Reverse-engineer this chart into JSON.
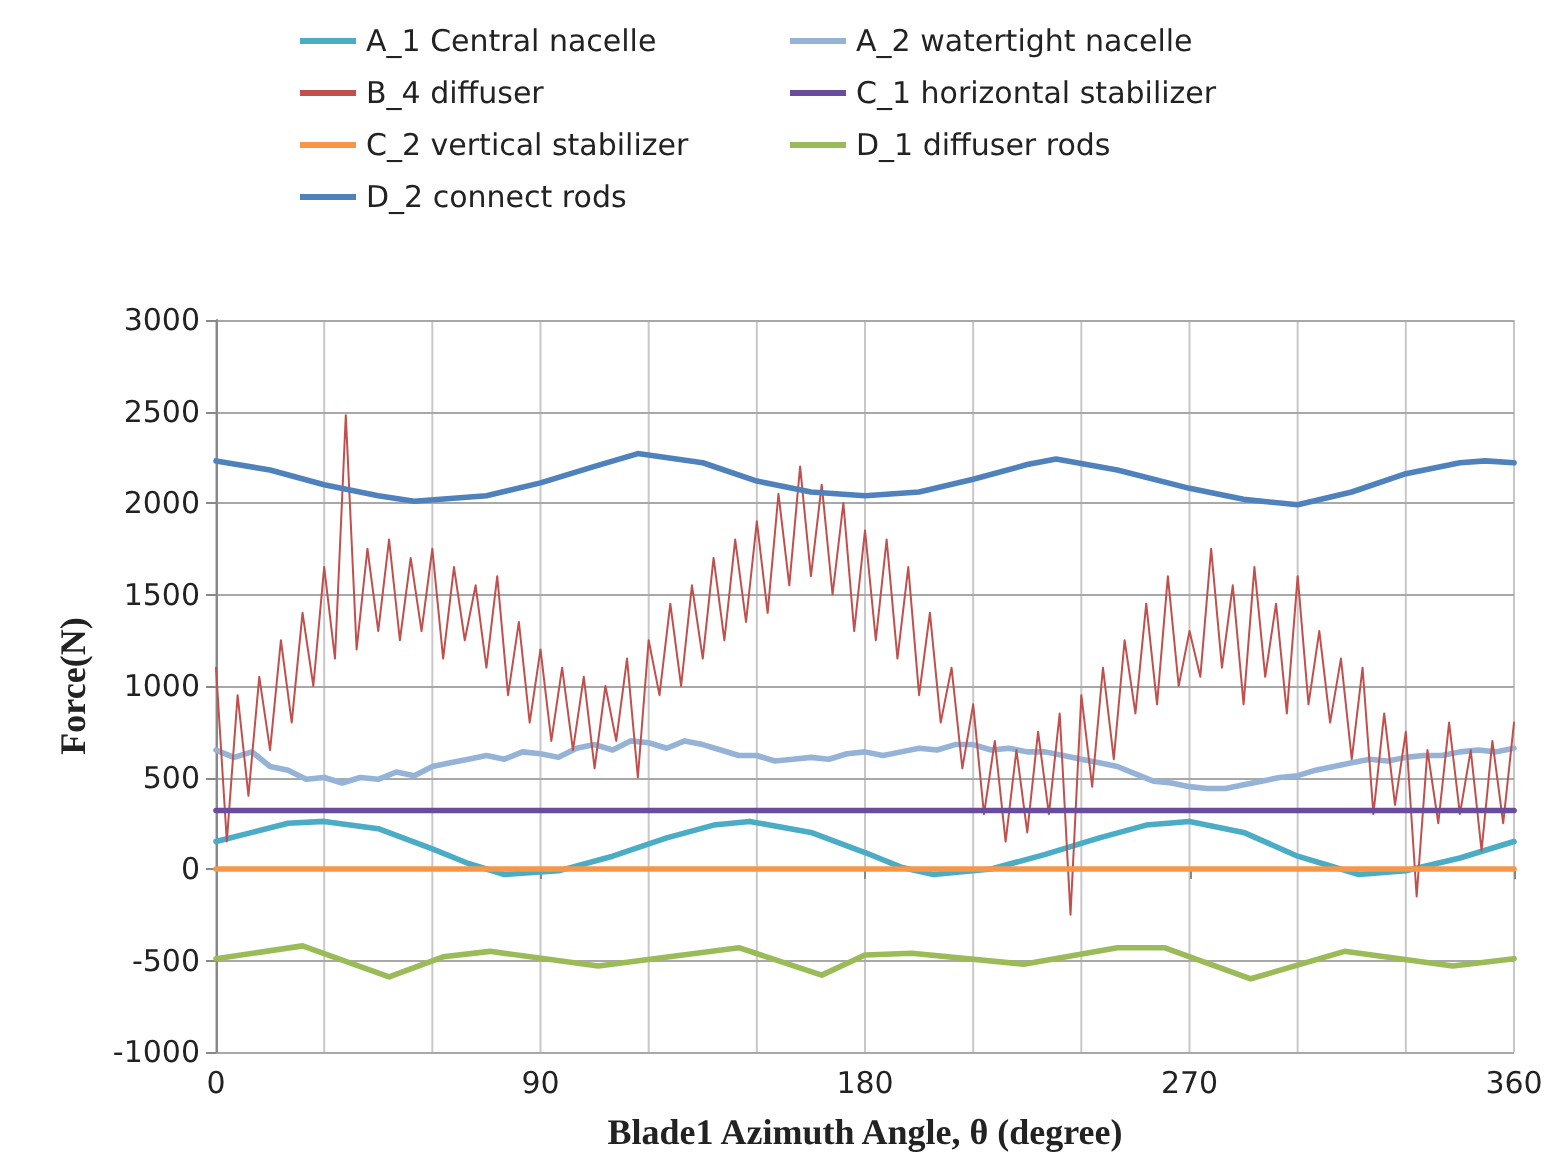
{
  "chart_data": {
    "type": "line",
    "xlabel": "Blade1 Azimuth Angle, θ (degree)",
    "ylabel": "Force(N)",
    "xlim": [
      0,
      360
    ],
    "ylim": [
      -1000,
      3000
    ],
    "xticks": [
      0,
      {
        "value": 30,
        "label": null
      },
      {
        "value": 60,
        "label": null
      },
      90,
      {
        "value": 120,
        "label": null
      },
      {
        "value": 150,
        "label": null
      },
      180,
      {
        "value": 210,
        "label": null
      },
      {
        "value": 240,
        "label": null
      },
      270,
      {
        "value": 300,
        "label": null
      },
      {
        "value": 330,
        "label": null
      },
      360
    ],
    "yticks": [
      -1000,
      -500,
      0,
      500,
      1000,
      1500,
      2000,
      2500,
      3000
    ],
    "grid": true,
    "legend": "top",
    "marker": "none",
    "line_style": "solid",
    "series": [
      {
        "name": "A_1 Central nacelle",
        "color": "#4bacc6",
        "x": [
          0,
          10,
          20,
          30,
          45,
          60,
          70,
          80,
          95,
          110,
          125,
          138,
          148,
          165,
          180,
          190,
          199,
          215,
          230,
          245,
          258,
          270,
          285,
          300,
          317,
          330,
          345,
          360
        ],
        "values": [
          150,
          200,
          250,
          260,
          220,
          110,
          30,
          -30,
          -10,
          70,
          170,
          240,
          260,
          200,
          90,
          10,
          -30,
          0,
          80,
          170,
          240,
          260,
          200,
          70,
          -30,
          -10,
          60,
          150
        ]
      },
      {
        "name": "A_2 watertight nacelle",
        "color": "#95b3d7",
        "x": [
          0,
          5,
          10,
          15,
          20,
          25,
          30,
          35,
          40,
          45,
          50,
          55,
          60,
          65,
          70,
          75,
          80,
          85,
          90,
          95,
          100,
          105,
          110,
          115,
          120,
          125,
          130,
          135,
          140,
          145,
          150,
          155,
          160,
          165,
          170,
          175,
          180,
          185,
          190,
          195,
          200,
          205,
          210,
          215,
          220,
          225,
          230,
          235,
          240,
          245,
          250,
          255,
          260,
          265,
          270,
          275,
          280,
          285,
          290,
          295,
          300,
          305,
          310,
          315,
          320,
          325,
          330,
          335,
          340,
          345,
          350,
          355,
          360
        ],
        "values": [
          650,
          610,
          640,
          560,
          540,
          490,
          500,
          470,
          500,
          490,
          530,
          510,
          560,
          580,
          600,
          620,
          600,
          640,
          630,
          610,
          660,
          680,
          650,
          700,
          690,
          660,
          700,
          680,
          650,
          620,
          620,
          590,
          600,
          610,
          600,
          630,
          640,
          620,
          640,
          660,
          650,
          680,
          680,
          650,
          660,
          640,
          640,
          620,
          600,
          580,
          560,
          520,
          480,
          470,
          450,
          440,
          440,
          460,
          480,
          500,
          510,
          540,
          560,
          580,
          600,
          590,
          610,
          620,
          620,
          640,
          650,
          640,
          660
        ]
      },
      {
        "name": "B_4 diffuser",
        "color": "#c0504d",
        "x": [
          0,
          3,
          6,
          9,
          12,
          15,
          18,
          21,
          24,
          27,
          30,
          33,
          36,
          39,
          42,
          45,
          48,
          51,
          54,
          57,
          60,
          63,
          66,
          69,
          72,
          75,
          78,
          81,
          84,
          87,
          90,
          93,
          96,
          99,
          102,
          105,
          108,
          111,
          114,
          117,
          120,
          123,
          126,
          129,
          132,
          135,
          138,
          141,
          144,
          147,
          150,
          153,
          156,
          159,
          162,
          165,
          168,
          171,
          174,
          177,
          180,
          183,
          186,
          189,
          192,
          195,
          198,
          201,
          204,
          207,
          210,
          213,
          216,
          219,
          222,
          225,
          228,
          231,
          234,
          237,
          240,
          243,
          246,
          249,
          252,
          255,
          258,
          261,
          264,
          267,
          270,
          273,
          276,
          279,
          282,
          285,
          288,
          291,
          294,
          297,
          300,
          303,
          306,
          309,
          312,
          315,
          318,
          321,
          324,
          327,
          330,
          333,
          336,
          339,
          342,
          345,
          348,
          351,
          354,
          357,
          360
        ],
        "values": [
          1100,
          150,
          950,
          400,
          1050,
          650,
          1250,
          800,
          1400,
          1000,
          1650,
          1150,
          2480,
          1200,
          1750,
          1300,
          1800,
          1250,
          1700,
          1300,
          1750,
          1150,
          1650,
          1250,
          1550,
          1100,
          1600,
          950,
          1350,
          800,
          1200,
          700,
          1100,
          650,
          1050,
          550,
          1000,
          700,
          1150,
          500,
          1250,
          950,
          1450,
          1000,
          1550,
          1150,
          1700,
          1250,
          1800,
          1350,
          1900,
          1400,
          2050,
          1550,
          2200,
          1600,
          2100,
          1500,
          2000,
          1300,
          1850,
          1250,
          1800,
          1150,
          1650,
          950,
          1400,
          800,
          1100,
          550,
          900,
          300,
          700,
          150,
          650,
          200,
          750,
          300,
          850,
          -250,
          950,
          450,
          1100,
          600,
          1250,
          850,
          1450,
          900,
          1600,
          1000,
          1300,
          1050,
          1750,
          1100,
          1550,
          900,
          1650,
          1050,
          1450,
          850,
          1600,
          900,
          1300,
          800,
          1150,
          600,
          1100,
          300,
          850,
          350,
          750,
          -150,
          650,
          250,
          800,
          300,
          650,
          100,
          700,
          250,
          800
        ]
      },
      {
        "name": "C_1 horizontal stabilizer",
        "color": "#6a4c9c",
        "x": [
          0,
          360
        ],
        "values": [
          320,
          320
        ]
      },
      {
        "name": "C_2 vertical stabilizer",
        "color": "#f79646",
        "x": [
          0,
          360
        ],
        "values": [
          0,
          0
        ]
      },
      {
        "name": "D_1 diffuser rods",
        "color": "#9bbb59",
        "x": [
          0,
          24,
          48,
          63,
          76,
          106,
          145,
          168,
          180,
          193,
          224,
          250,
          263,
          287,
          313,
          343,
          360
        ],
        "values": [
          -490,
          -420,
          -590,
          -480,
          -450,
          -530,
          -430,
          -580,
          -470,
          -460,
          -520,
          -430,
          -430,
          -600,
          -450,
          -530,
          -490
        ]
      },
      {
        "name": "D_2 connect rods",
        "color": "#4f81bd",
        "x": [
          0,
          15,
          30,
          45,
          55,
          75,
          90,
          105,
          117,
          135,
          150,
          165,
          180,
          195,
          210,
          225,
          233,
          250,
          270,
          285,
          300,
          315,
          330,
          345,
          352,
          360
        ],
        "values": [
          2230,
          2180,
          2100,
          2040,
          2010,
          2040,
          2110,
          2200,
          2270,
          2220,
          2120,
          2060,
          2040,
          2060,
          2130,
          2210,
          2240,
          2180,
          2080,
          2020,
          1990,
          2060,
          2160,
          2220,
          2230,
          2220
        ]
      }
    ]
  }
}
